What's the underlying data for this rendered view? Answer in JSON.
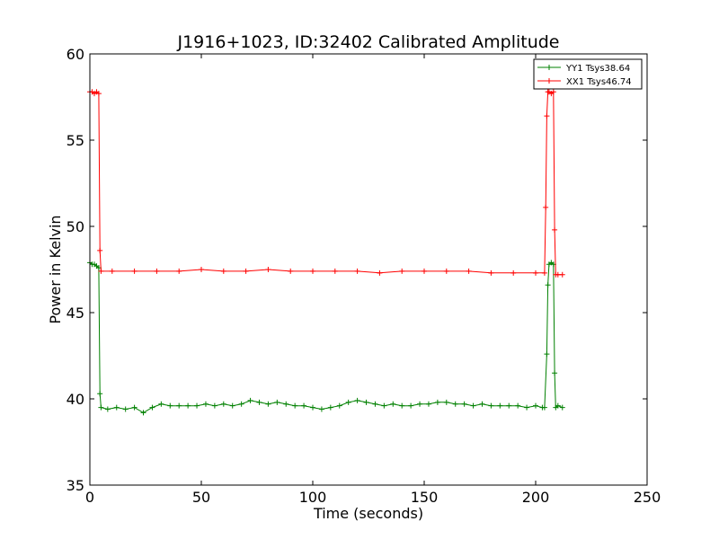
{
  "chart_data": {
    "type": "line",
    "title": "J1916+1023, ID:32402 Calibrated Amplitude",
    "xlabel": "Time (seconds)",
    "ylabel": "Power in Kelvin",
    "xlim": [
      0,
      250
    ],
    "ylim": [
      35,
      60
    ],
    "xticks": [
      0,
      50,
      100,
      150,
      200,
      250
    ],
    "yticks": [
      35,
      40,
      45,
      50,
      55,
      60
    ],
    "grid": false,
    "legend": "top-right",
    "series": [
      {
        "name": "YY1 Tsys38.64",
        "color": "#008000",
        "marker": "+",
        "x": [
          0,
          1,
          2,
          3,
          4,
          4.5,
          5,
          8,
          12,
          16,
          20,
          24,
          28,
          32,
          36,
          40,
          44,
          48,
          52,
          56,
          60,
          64,
          68,
          72,
          76,
          80,
          84,
          88,
          92,
          96,
          100,
          104,
          108,
          112,
          116,
          120,
          124,
          128,
          132,
          136,
          140,
          144,
          148,
          152,
          156,
          160,
          164,
          168,
          172,
          176,
          180,
          184,
          188,
          192,
          196,
          200,
          203,
          204,
          205,
          205.5,
          206,
          207,
          208,
          208.5,
          209,
          210,
          212
        ],
        "y": [
          47.9,
          47.8,
          47.8,
          47.7,
          47.6,
          40.3,
          39.5,
          39.4,
          39.5,
          39.4,
          39.5,
          39.2,
          39.5,
          39.7,
          39.6,
          39.6,
          39.6,
          39.6,
          39.7,
          39.6,
          39.7,
          39.6,
          39.7,
          39.9,
          39.8,
          39.7,
          39.8,
          39.7,
          39.6,
          39.6,
          39.5,
          39.4,
          39.5,
          39.6,
          39.8,
          39.9,
          39.8,
          39.7,
          39.6,
          39.7,
          39.6,
          39.6,
          39.7,
          39.7,
          39.8,
          39.8,
          39.7,
          39.7,
          39.6,
          39.7,
          39.6,
          39.6,
          39.6,
          39.6,
          39.5,
          39.6,
          39.5,
          39.5,
          42.6,
          46.6,
          47.8,
          47.9,
          47.8,
          41.5,
          39.5,
          39.6,
          39.5
        ]
      },
      {
        "name": "XX1 Tsys46.74",
        "color": "#ff0000",
        "marker": "+",
        "x": [
          0,
          1,
          2,
          3,
          4,
          4.5,
          5,
          10,
          20,
          30,
          40,
          50,
          60,
          70,
          80,
          90,
          100,
          110,
          120,
          130,
          140,
          150,
          160,
          170,
          180,
          190,
          200,
          204,
          204.5,
          205,
          205.5,
          206,
          207,
          208,
          208.5,
          209,
          210,
          212
        ],
        "y": [
          57.8,
          57.8,
          57.7,
          57.8,
          57.7,
          48.6,
          47.4,
          47.4,
          47.4,
          47.4,
          47.4,
          47.5,
          47.4,
          47.4,
          47.5,
          47.4,
          47.4,
          47.4,
          47.4,
          47.3,
          47.4,
          47.4,
          47.4,
          47.4,
          47.3,
          47.3,
          47.3,
          47.3,
          51.1,
          56.4,
          57.8,
          57.8,
          57.7,
          57.8,
          49.8,
          47.2,
          47.2,
          47.2
        ]
      }
    ]
  }
}
